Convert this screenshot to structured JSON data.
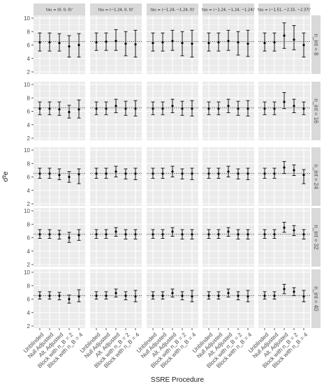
{
  "chart_data": {
    "type": "errorbar",
    "xlabel": "SSRE Procedure",
    "ylabel": "σ̂²e",
    "ylim": [
      2,
      10
    ],
    "yticks": [
      2,
      4,
      6,
      8,
      10
    ],
    "grid": true,
    "reference_line": 6.5,
    "categories": [
      "Unblinded",
      "Null Adjusted",
      "Alt. Adjusted",
      "Block with n_B = 2",
      "Block with n_B = 4"
    ],
    "columns": [
      "tau = (0, 0, 0)'",
      "tau = (−1.24, 0, 0)'",
      "tau = (−1.24, −1.24, 0)'",
      "tau = (−1.24, −1.24, −1.24)'",
      "tau = (−1.51, −2.15, −2.37)'"
    ],
    "rows": [
      "n_int = 8",
      "n_int = 16",
      "n_int = 24",
      "n_int = 32",
      "n_int = 40"
    ],
    "panels": [
      [
        {
          "mean": [
            6.4,
            6.4,
            6.3,
            5.8,
            6.0
          ],
          "lower": [
            5.1,
            5.1,
            5.1,
            4.2,
            4.2
          ],
          "upper": [
            7.8,
            7.8,
            7.7,
            7.4,
            7.7
          ]
        },
        {
          "mean": [
            6.4,
            6.5,
            6.6,
            6.2,
            6.1
          ],
          "lower": [
            5.2,
            5.2,
            5.2,
            4.4,
            4.2
          ],
          "upper": [
            7.8,
            7.8,
            8.3,
            8.0,
            8.2
          ]
        },
        {
          "mean": [
            6.3,
            6.4,
            6.6,
            6.3,
            6.2
          ],
          "lower": [
            5.1,
            5.1,
            5.2,
            4.4,
            4.2
          ],
          "upper": [
            7.8,
            7.8,
            8.2,
            8.0,
            8.2
          ]
        },
        {
          "mean": [
            6.3,
            6.4,
            6.6,
            6.4,
            6.2
          ],
          "lower": [
            5.1,
            5.1,
            5.2,
            4.5,
            4.3
          ],
          "upper": [
            7.8,
            7.8,
            8.2,
            8.0,
            8.2
          ]
        },
        {
          "mean": [
            6.3,
            6.4,
            7.4,
            6.8,
            6.0
          ],
          "lower": [
            5.1,
            5.1,
            5.5,
            5.3,
            4.2
          ],
          "upper": [
            7.8,
            7.8,
            9.3,
            8.9,
            7.8
          ]
        }
      ],
      [
        {
          "mean": [
            6.4,
            6.4,
            6.3,
            5.9,
            6.3
          ],
          "lower": [
            5.5,
            5.5,
            5.4,
            5.0,
            5.0
          ],
          "upper": [
            7.4,
            7.4,
            7.4,
            6.9,
            7.7
          ]
        },
        {
          "mean": [
            6.4,
            6.4,
            6.8,
            6.4,
            6.4
          ],
          "lower": [
            5.5,
            5.5,
            5.8,
            5.4,
            5.3
          ],
          "upper": [
            7.4,
            7.4,
            7.8,
            7.5,
            7.6
          ]
        },
        {
          "mean": [
            6.4,
            6.4,
            6.8,
            6.4,
            6.4
          ],
          "lower": [
            5.5,
            5.5,
            5.8,
            5.4,
            5.3
          ],
          "upper": [
            7.4,
            7.4,
            7.8,
            7.5,
            7.6
          ]
        },
        {
          "mean": [
            6.4,
            6.4,
            6.8,
            6.4,
            6.4
          ],
          "lower": [
            5.5,
            5.5,
            5.8,
            5.4,
            5.3
          ],
          "upper": [
            7.4,
            7.4,
            7.8,
            7.5,
            7.6
          ]
        },
        {
          "mean": [
            6.4,
            6.4,
            7.4,
            6.8,
            6.4
          ],
          "lower": [
            5.5,
            5.5,
            6.4,
            5.8,
            5.5
          ],
          "upper": [
            7.4,
            7.4,
            8.8,
            7.8,
            7.4
          ]
        }
      ],
      [
        {
          "mean": [
            6.5,
            6.5,
            6.3,
            6.0,
            6.4
          ],
          "lower": [
            5.8,
            5.8,
            5.6,
            5.2,
            5.0
          ],
          "upper": [
            7.3,
            7.3,
            7.2,
            6.8,
            7.2
          ]
        },
        {
          "mean": [
            6.5,
            6.5,
            6.8,
            6.5,
            6.5
          ],
          "lower": [
            5.8,
            5.8,
            6.0,
            5.7,
            5.6
          ],
          "upper": [
            7.3,
            7.3,
            7.6,
            7.2,
            7.3
          ]
        },
        {
          "mean": [
            6.5,
            6.5,
            6.8,
            6.5,
            6.5
          ],
          "lower": [
            5.8,
            5.8,
            6.0,
            5.7,
            5.6
          ],
          "upper": [
            7.3,
            7.3,
            7.6,
            7.2,
            7.3
          ]
        },
        {
          "mean": [
            6.5,
            6.5,
            6.8,
            6.5,
            6.5
          ],
          "lower": [
            5.8,
            5.8,
            6.0,
            5.7,
            5.6
          ],
          "upper": [
            7.3,
            7.3,
            7.6,
            7.2,
            7.3
          ]
        },
        {
          "mean": [
            6.5,
            6.5,
            7.4,
            7.0,
            6.3
          ],
          "lower": [
            5.8,
            5.8,
            6.5,
            6.2,
            5.0
          ],
          "upper": [
            7.3,
            7.3,
            8.3,
            7.8,
            7.1
          ]
        }
      ],
      [
        {
          "mean": [
            6.5,
            6.5,
            6.5,
            6.0,
            6.4
          ],
          "lower": [
            5.9,
            5.9,
            5.8,
            5.3,
            5.6
          ],
          "upper": [
            7.2,
            7.2,
            7.1,
            6.8,
            7.2
          ]
        },
        {
          "mean": [
            6.5,
            6.5,
            6.9,
            6.5,
            6.5
          ],
          "lower": [
            5.9,
            5.9,
            6.2,
            5.8,
            5.8
          ],
          "upper": [
            7.2,
            7.2,
            7.5,
            7.2,
            7.2
          ]
        },
        {
          "mean": [
            6.5,
            6.5,
            6.9,
            6.5,
            6.5
          ],
          "lower": [
            5.9,
            5.9,
            6.2,
            5.8,
            5.8
          ],
          "upper": [
            7.2,
            7.2,
            7.5,
            7.2,
            7.2
          ]
        },
        {
          "mean": [
            6.5,
            6.5,
            6.9,
            6.5,
            6.5
          ],
          "lower": [
            5.9,
            5.9,
            6.2,
            5.8,
            5.8
          ],
          "upper": [
            7.2,
            7.2,
            7.5,
            7.2,
            7.2
          ]
        },
        {
          "mean": [
            6.5,
            6.5,
            7.5,
            7.1,
            6.5
          ],
          "lower": [
            5.9,
            5.9,
            6.8,
            6.3,
            5.8
          ],
          "upper": [
            7.2,
            7.2,
            8.3,
            7.8,
            7.2
          ]
        }
      ],
      [
        {
          "mean": [
            6.5,
            6.5,
            6.5,
            6.0,
            6.4
          ],
          "lower": [
            6.0,
            6.0,
            5.9,
            5.4,
            5.6
          ],
          "upper": [
            7.1,
            7.1,
            7.0,
            6.6,
            7.4
          ]
        },
        {
          "mean": [
            6.5,
            6.5,
            6.9,
            6.5,
            6.4
          ],
          "lower": [
            6.0,
            6.0,
            6.3,
            5.9,
            5.6
          ],
          "upper": [
            7.1,
            7.1,
            7.5,
            7.1,
            7.3
          ]
        },
        {
          "mean": [
            6.5,
            6.5,
            6.9,
            6.5,
            6.4
          ],
          "lower": [
            6.0,
            6.0,
            6.3,
            5.9,
            5.6
          ],
          "upper": [
            7.1,
            7.1,
            7.5,
            7.1,
            7.3
          ]
        },
        {
          "mean": [
            6.5,
            6.5,
            6.9,
            6.5,
            6.4
          ],
          "lower": [
            6.0,
            6.0,
            6.3,
            5.9,
            5.6
          ],
          "upper": [
            7.1,
            7.1,
            7.5,
            7.1,
            7.3
          ]
        },
        {
          "mean": [
            6.5,
            6.5,
            7.5,
            7.1,
            6.4
          ],
          "lower": [
            6.0,
            6.0,
            6.8,
            6.5,
            5.6
          ],
          "upper": [
            7.1,
            7.1,
            8.2,
            7.7,
            7.3
          ]
        }
      ]
    ],
    "colors": {
      "panel_bg": "#ebebeb",
      "grid": "#ffffff",
      "strip_bg": "#d9d9d9",
      "marks": "#000000",
      "text": "#4d4d4d"
    }
  }
}
